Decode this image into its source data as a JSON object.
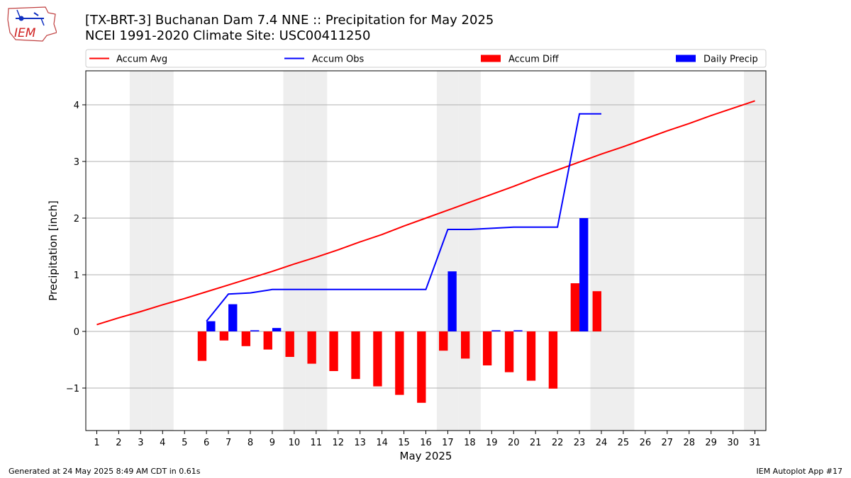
{
  "header": {
    "logo_text": "IEM",
    "title_line1": "[TX-BRT-3] Buchanan Dam 7.4 NNE :: Precipitation for May 2025",
    "title_line2": "NCEI 1991-2020 Climate Site: USC00411250"
  },
  "footer": {
    "generated": "Generated at 24 May 2025 8:49 AM CDT in 0.61s",
    "app": "IEM Autoplot App #17"
  },
  "colors": {
    "accum_avg": "#ff0000",
    "accum_obs": "#0000ff",
    "accum_diff": "#ff0000",
    "daily_precip": "#0000ff",
    "weekend_shade": "#eeeeee",
    "grid": "#b0b0b0"
  },
  "chart_data": {
    "type": "bar",
    "xlabel": "May 2025",
    "ylabel": "Precipitation [inch]",
    "xlim": [
      0.5,
      31.5
    ],
    "ylim": [
      -1.75,
      4.6
    ],
    "yticks": [
      -1,
      0,
      1,
      2,
      3,
      4
    ],
    "ytick_labels": [
      "−1",
      "0",
      "1",
      "2",
      "3",
      "4"
    ],
    "grid": "horizontal",
    "legend": {
      "position": "top",
      "entries": [
        "Accum Avg",
        "Accum Obs",
        "Accum Diff",
        "Daily Precip"
      ]
    },
    "weekend_days": [
      3,
      4,
      10,
      11,
      17,
      18,
      24,
      25,
      31
    ],
    "days": [
      1,
      2,
      3,
      4,
      5,
      6,
      7,
      8,
      9,
      10,
      11,
      12,
      13,
      14,
      15,
      16,
      17,
      18,
      19,
      20,
      21,
      22,
      23,
      24,
      25,
      26,
      27,
      28,
      29,
      30,
      31
    ],
    "series": [
      {
        "name": "Accum Avg",
        "type": "line",
        "x": [
          1,
          2,
          3,
          4,
          5,
          6,
          7,
          8,
          9,
          10,
          11,
          12,
          13,
          14,
          15,
          16,
          17,
          18,
          19,
          20,
          21,
          22,
          23,
          24,
          25,
          26,
          27,
          28,
          29,
          30,
          31
        ],
        "values": [
          0.12,
          0.24,
          0.35,
          0.47,
          0.58,
          0.7,
          0.82,
          0.94,
          1.06,
          1.19,
          1.31,
          1.44,
          1.58,
          1.71,
          1.86,
          2.0,
          2.14,
          2.28,
          2.42,
          2.56,
          2.71,
          2.85,
          2.99,
          3.13,
          3.26,
          3.4,
          3.54,
          3.67,
          3.81,
          3.94,
          4.07
        ]
      },
      {
        "name": "Accum Obs",
        "type": "line",
        "x": [
          6,
          7,
          8,
          9,
          10,
          11,
          12,
          13,
          14,
          15,
          16,
          17,
          18,
          19,
          20,
          21,
          22,
          23,
          24
        ],
        "values": [
          0.18,
          0.66,
          0.68,
          0.74,
          0.74,
          0.74,
          0.74,
          0.74,
          0.74,
          0.74,
          0.74,
          1.8,
          1.8,
          1.82,
          1.84,
          1.84,
          1.84,
          3.84,
          3.84
        ]
      },
      {
        "name": "Accum Diff",
        "type": "bar",
        "x": [
          6,
          7,
          8,
          9,
          10,
          11,
          12,
          13,
          14,
          15,
          16,
          17,
          18,
          19,
          20,
          21,
          22,
          23,
          24
        ],
        "values": [
          -0.52,
          -0.16,
          -0.26,
          -0.32,
          -0.45,
          -0.57,
          -0.7,
          -0.84,
          -0.97,
          -1.12,
          -1.26,
          -0.34,
          -0.48,
          -0.6,
          -0.72,
          -0.87,
          -1.01,
          0.85,
          0.71
        ]
      },
      {
        "name": "Daily Precip",
        "type": "bar",
        "x": [
          6,
          7,
          8,
          9,
          10,
          11,
          12,
          13,
          14,
          15,
          16,
          17,
          18,
          19,
          20,
          21,
          22,
          23,
          24
        ],
        "values": [
          0.18,
          0.48,
          0.02,
          0.06,
          0,
          0,
          0,
          0,
          0,
          0,
          0,
          1.06,
          0,
          0.02,
          0.02,
          0,
          0,
          2.0,
          0
        ]
      }
    ]
  }
}
